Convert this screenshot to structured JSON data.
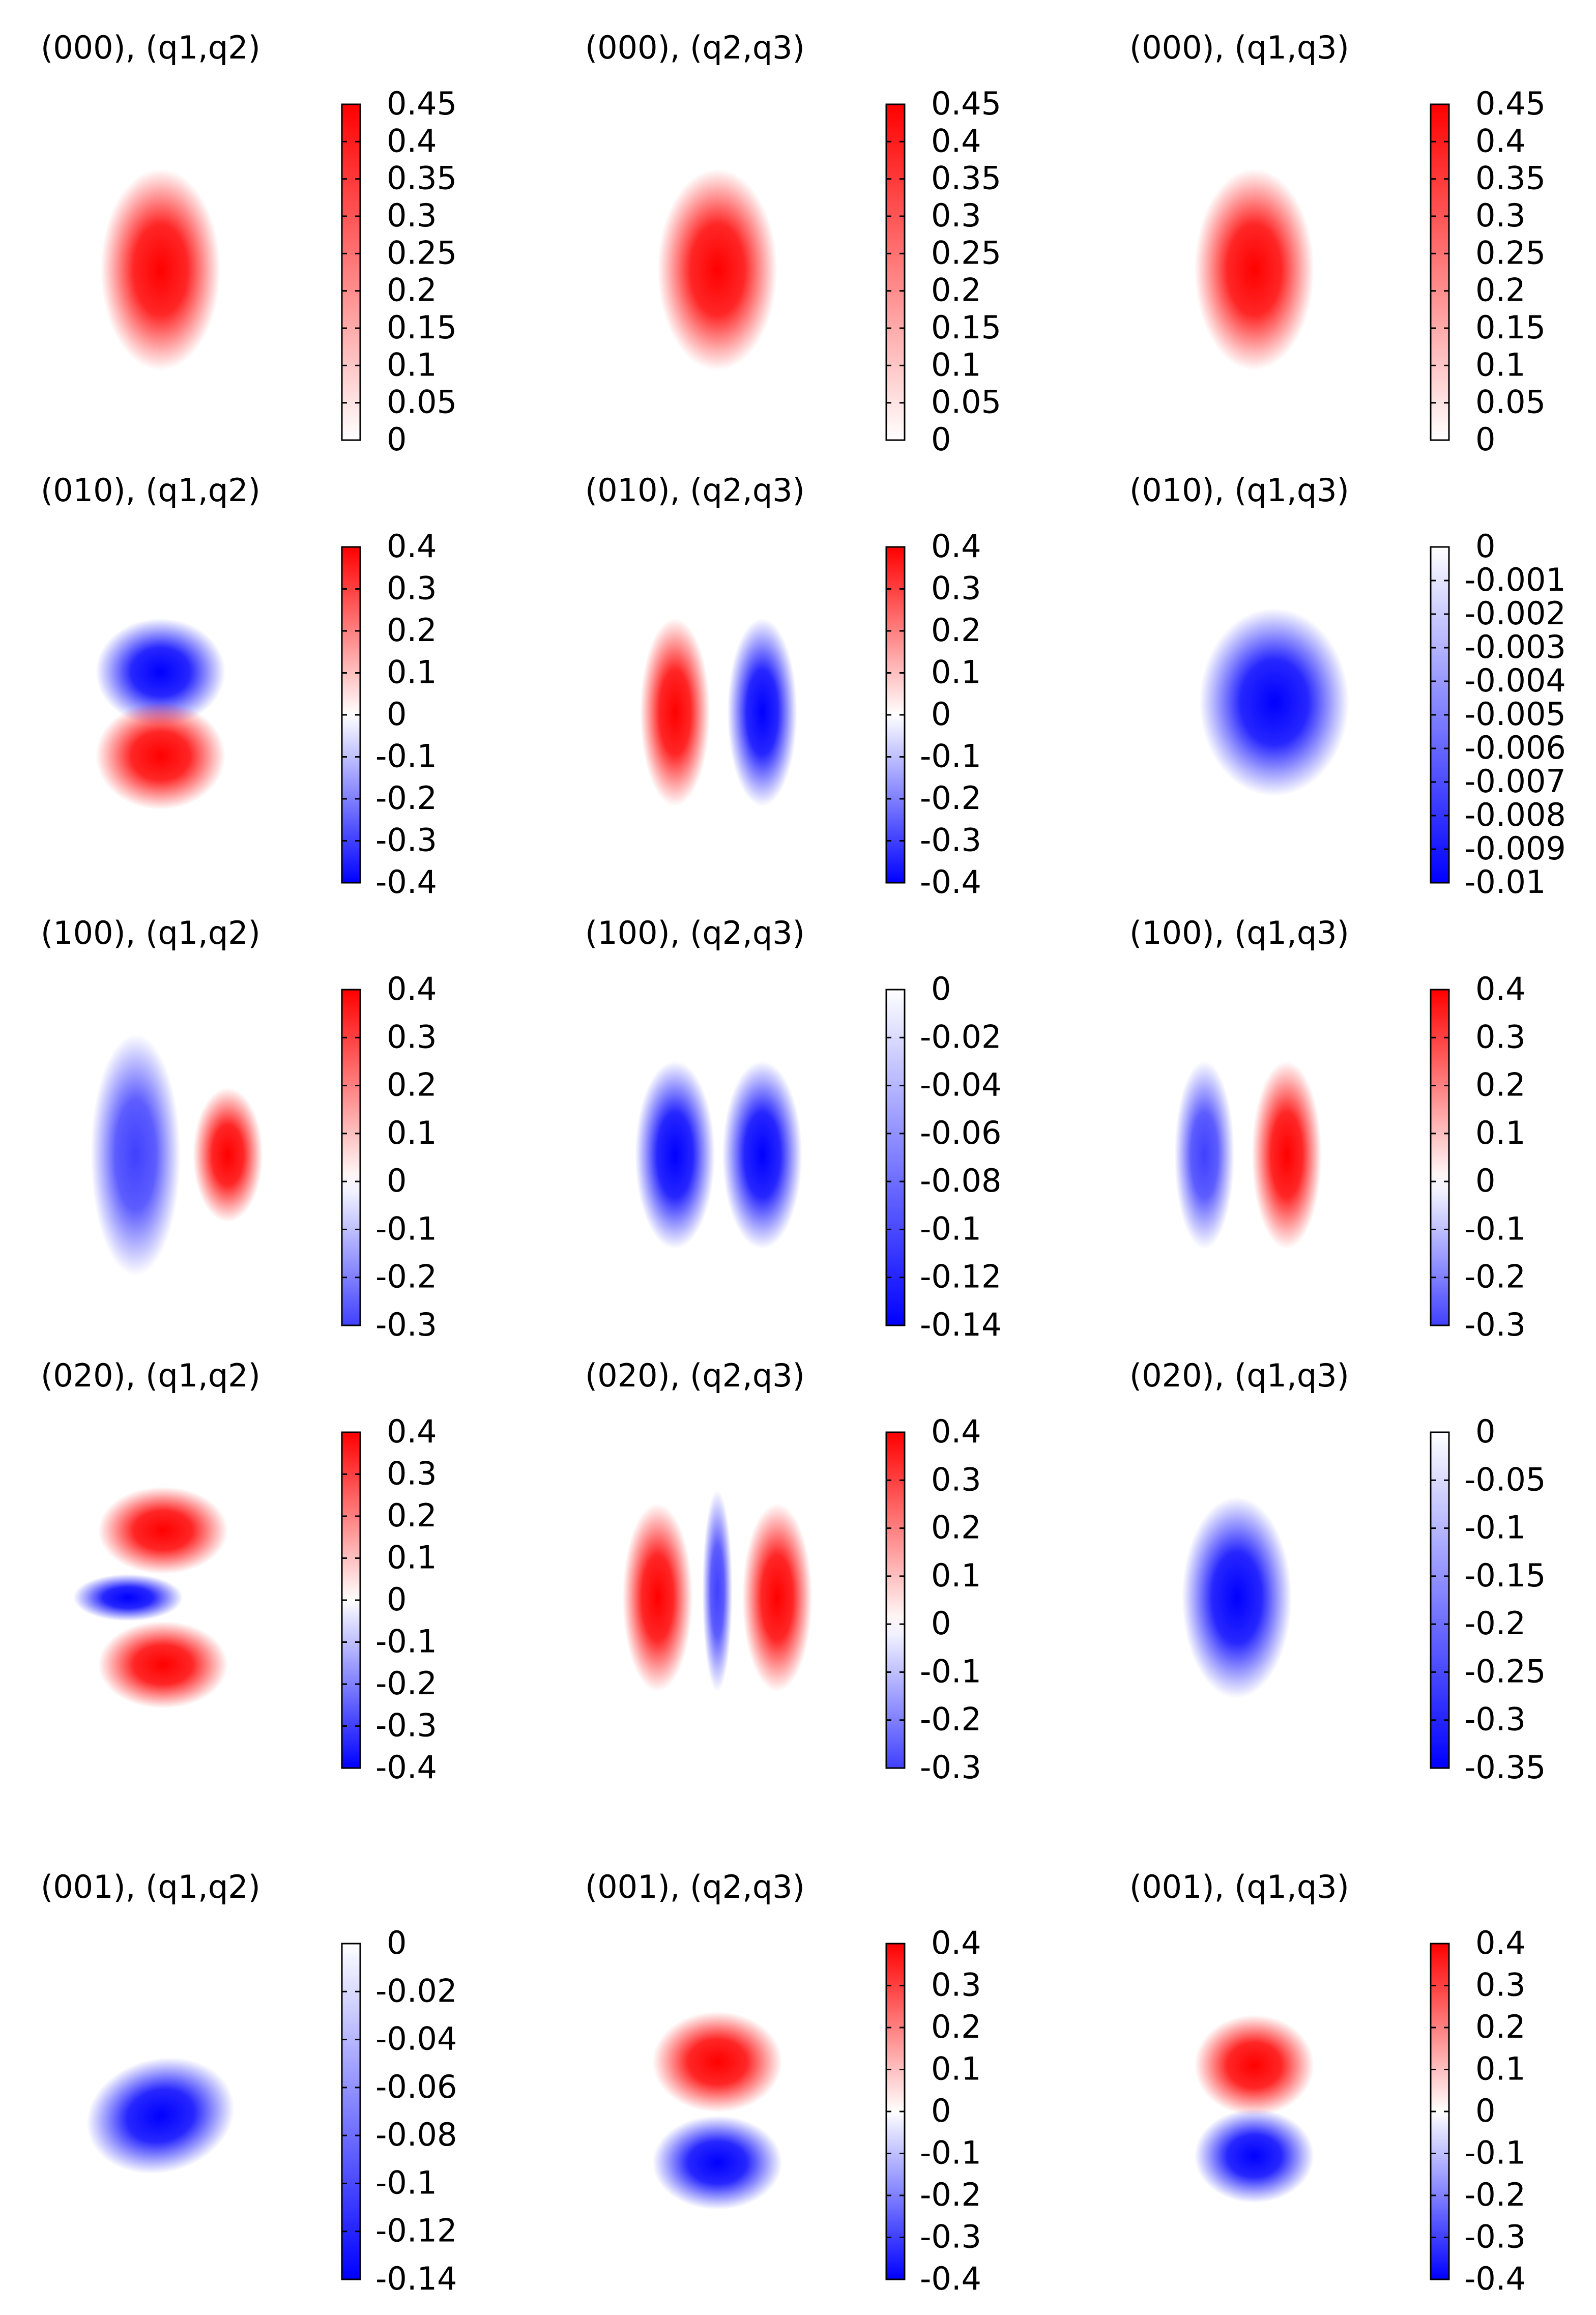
{
  "figure": {
    "type": "heatmap-grid",
    "rows": 5,
    "cols": 3
  },
  "colors": {
    "positive": "#ff0000",
    "negative": "#0000ff",
    "zero": "#ffffff",
    "bar_edge": "#000000"
  },
  "chart_data": [
    {
      "type": "heatmap",
      "title": "(000), (q1,q2)",
      "cbar_ticks": [
        "0.45",
        "0.4",
        "0.35",
        "0.3",
        "0.25",
        "0.2",
        "0.15",
        "0.1",
        "0.05",
        "0"
      ],
      "cbar_range": [
        0,
        0.45
      ],
      "blobs": [
        {
          "cx": 0.45,
          "cy": 0.5,
          "rx": 0.24,
          "ry": 0.3,
          "value": 0.45
        }
      ]
    },
    {
      "type": "heatmap",
      "title": "(000), (q2,q3)",
      "cbar_ticks": [
        "0.45",
        "0.4",
        "0.35",
        "0.3",
        "0.25",
        "0.2",
        "0.15",
        "0.1",
        "0.05",
        "0"
      ],
      "cbar_range": [
        0,
        0.45
      ],
      "blobs": [
        {
          "cx": 0.5,
          "cy": 0.5,
          "rx": 0.24,
          "ry": 0.3,
          "value": 0.45
        }
      ]
    },
    {
      "type": "heatmap",
      "title": "(000), (q1,q3)",
      "cbar_ticks": [
        "0.45",
        "0.4",
        "0.35",
        "0.3",
        "0.25",
        "0.2",
        "0.15",
        "0.1",
        "0.05",
        "0"
      ],
      "cbar_range": [
        0,
        0.45
      ],
      "blobs": [
        {
          "cx": 0.47,
          "cy": 0.5,
          "rx": 0.24,
          "ry": 0.3,
          "value": 0.45
        }
      ]
    },
    {
      "type": "heatmap",
      "title": "(010), (q1,q2)",
      "cbar_ticks": [
        "0.4",
        "0.3",
        "0.2",
        "0.1",
        "0",
        "-0.1",
        "-0.2",
        "-0.3",
        "-0.4"
      ],
      "cbar_range": [
        -0.4,
        0.4
      ],
      "blobs": [
        {
          "cx": 0.45,
          "cy": 0.38,
          "rx": 0.26,
          "ry": 0.16,
          "value": -0.4
        },
        {
          "cx": 0.45,
          "cy": 0.63,
          "rx": 0.26,
          "ry": 0.16,
          "value": 0.4
        }
      ]
    },
    {
      "type": "heatmap",
      "title": "(010), (q2,q3)",
      "cbar_ticks": [
        "0.4",
        "0.3",
        "0.2",
        "0.1",
        "0",
        "-0.1",
        "-0.2",
        "-0.3",
        "-0.4"
      ],
      "cbar_range": [
        -0.4,
        0.4
      ],
      "blobs": [
        {
          "cx": 0.33,
          "cy": 0.5,
          "rx": 0.14,
          "ry": 0.28,
          "value": 0.4
        },
        {
          "cx": 0.68,
          "cy": 0.5,
          "rx": 0.14,
          "ry": 0.28,
          "value": -0.4
        }
      ]
    },
    {
      "type": "heatmap",
      "title": "(010), (q1,q3)",
      "cbar_ticks": [
        "0",
        "-0.001",
        "-0.002",
        "-0.003",
        "-0.004",
        "-0.005",
        "-0.006",
        "-0.007",
        "-0.008",
        "-0.009",
        "-0.01"
      ],
      "cbar_range": [
        -0.01,
        0
      ],
      "blobs": [
        {
          "cx": 0.55,
          "cy": 0.47,
          "rx": 0.3,
          "ry": 0.28,
          "value": -0.01
        }
      ]
    },
    {
      "type": "heatmap",
      "title": "(100), (q1,q2)",
      "cbar_ticks": [
        "0.4",
        "0.3",
        "0.2",
        "0.1",
        "0",
        "-0.1",
        "-0.2",
        "-0.3"
      ],
      "cbar_range": [
        -0.3,
        0.4
      ],
      "blobs": [
        {
          "cx": 0.35,
          "cy": 0.5,
          "rx": 0.18,
          "ry": 0.36,
          "value": -0.3
        },
        {
          "cx": 0.72,
          "cy": 0.5,
          "rx": 0.14,
          "ry": 0.2,
          "value": 0.4
        }
      ]
    },
    {
      "type": "heatmap",
      "title": "(100), (q2,q3)",
      "cbar_ticks": [
        "0",
        "-0.02",
        "-0.04",
        "-0.06",
        "-0.08",
        "-0.1",
        "-0.12",
        "-0.14"
      ],
      "cbar_range": [
        -0.14,
        0
      ],
      "blobs": [
        {
          "cx": 0.33,
          "cy": 0.5,
          "rx": 0.16,
          "ry": 0.28,
          "value": -0.14
        },
        {
          "cx": 0.68,
          "cy": 0.5,
          "rx": 0.16,
          "ry": 0.28,
          "value": -0.14
        }
      ]
    },
    {
      "type": "heatmap",
      "title": "(100), (q1,q3)",
      "cbar_ticks": [
        "0.4",
        "0.3",
        "0.2",
        "0.1",
        "0",
        "-0.1",
        "-0.2",
        "-0.3"
      ],
      "cbar_range": [
        -0.3,
        0.4
      ],
      "blobs": [
        {
          "cx": 0.27,
          "cy": 0.5,
          "rx": 0.12,
          "ry": 0.28,
          "value": -0.3
        },
        {
          "cx": 0.6,
          "cy": 0.5,
          "rx": 0.14,
          "ry": 0.28,
          "value": 0.4
        }
      ]
    },
    {
      "type": "heatmap",
      "title": "(020), (q1,q2)",
      "cbar_ticks": [
        "0.4",
        "0.3",
        "0.2",
        "0.1",
        "0",
        "-0.1",
        "-0.2",
        "-0.3",
        "-0.4"
      ],
      "cbar_range": [
        -0.4,
        0.4
      ],
      "blobs": [
        {
          "cx": 0.46,
          "cy": 0.3,
          "rx": 0.26,
          "ry": 0.13,
          "value": 0.4
        },
        {
          "cx": 0.32,
          "cy": 0.5,
          "rx": 0.22,
          "ry": 0.07,
          "value": -0.4
        },
        {
          "cx": 0.46,
          "cy": 0.7,
          "rx": 0.26,
          "ry": 0.13,
          "value": 0.4
        }
      ]
    },
    {
      "type": "heatmap",
      "title": "(020), (q2,q3)",
      "cbar_ticks": [
        "0.4",
        "0.3",
        "0.2",
        "0.1",
        "0",
        "-0.1",
        "-0.2",
        "-0.3"
      ],
      "cbar_range": [
        -0.3,
        0.4
      ],
      "blobs": [
        {
          "cx": 0.26,
          "cy": 0.5,
          "rx": 0.14,
          "ry": 0.28,
          "value": 0.4
        },
        {
          "cx": 0.5,
          "cy": 0.48,
          "rx": 0.06,
          "ry": 0.3,
          "value": -0.3
        },
        {
          "cx": 0.74,
          "cy": 0.5,
          "rx": 0.14,
          "ry": 0.28,
          "value": 0.4
        }
      ]
    },
    {
      "type": "heatmap",
      "title": "(020), (q1,q3)",
      "cbar_ticks": [
        "0",
        "-0.05",
        "-0.1",
        "-0.15",
        "-0.2",
        "-0.25",
        "-0.3",
        "-0.35"
      ],
      "cbar_range": [
        -0.35,
        0
      ],
      "blobs": [
        {
          "cx": 0.4,
          "cy": 0.5,
          "rx": 0.22,
          "ry": 0.3,
          "value": -0.35
        }
      ]
    },
    {
      "type": "heatmap",
      "title": "(001), (q1,q2)",
      "cbar_ticks": [
        "0",
        "-0.02",
        "-0.04",
        "-0.06",
        "-0.08",
        "-0.1",
        "-0.12",
        "-0.14"
      ],
      "cbar_range": [
        -0.14,
        0
      ],
      "blobs": [
        {
          "cx": 0.45,
          "cy": 0.52,
          "rx": 0.3,
          "ry": 0.17,
          "rotate": -14,
          "value": -0.14
        }
      ]
    },
    {
      "type": "heatmap",
      "title": "(001), (q2,q3)",
      "cbar_ticks": [
        "0.4",
        "0.3",
        "0.2",
        "0.1",
        "0",
        "-0.1",
        "-0.2",
        "-0.3",
        "-0.4"
      ],
      "cbar_range": [
        -0.4,
        0.4
      ],
      "blobs": [
        {
          "cx": 0.5,
          "cy": 0.36,
          "rx": 0.26,
          "ry": 0.15,
          "value": 0.4
        },
        {
          "cx": 0.5,
          "cy": 0.66,
          "rx": 0.26,
          "ry": 0.14,
          "value": -0.4
        }
      ]
    },
    {
      "type": "heatmap",
      "title": "(001), (q1,q3)",
      "cbar_ticks": [
        "0.4",
        "0.3",
        "0.2",
        "0.1",
        "0",
        "-0.1",
        "-0.2",
        "-0.3",
        "-0.4"
      ],
      "cbar_range": [
        -0.4,
        0.4
      ],
      "blobs": [
        {
          "cx": 0.47,
          "cy": 0.37,
          "rx": 0.24,
          "ry": 0.15,
          "value": 0.4
        },
        {
          "cx": 0.47,
          "cy": 0.64,
          "rx": 0.24,
          "ry": 0.14,
          "value": -0.4
        }
      ]
    }
  ]
}
